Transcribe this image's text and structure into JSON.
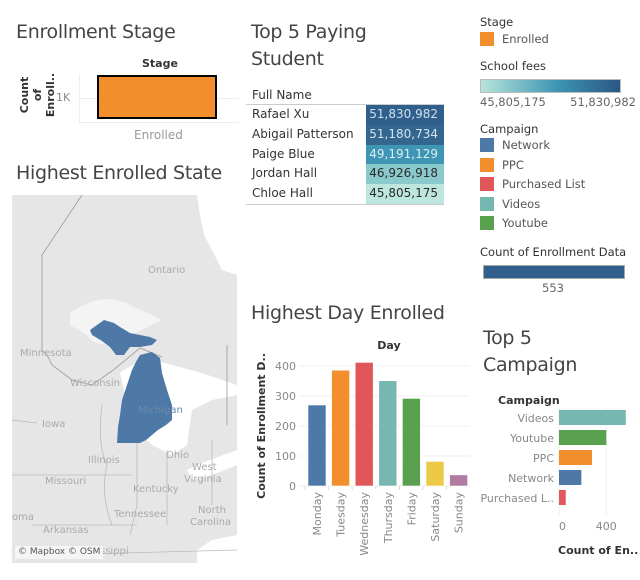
{
  "dashboard": {
    "stage_panel": {
      "title": "Enrollment Stage",
      "header": "Stage",
      "y_axis_label_line1": "Count of",
      "y_axis_label_line2": "Enroll..",
      "y_tick": "1K",
      "category": "Enrolled",
      "bar_color": "#F28E2B"
    },
    "paying_panel": {
      "title_line1": "Top 5 Paying",
      "title_line2": "Student",
      "column_header": "Full Name",
      "rows": [
        {
          "name": "Rafael Xu",
          "fee": "51,830,982",
          "bg": "#2F5F8A",
          "fg": "#cfe0ee"
        },
        {
          "name": "Abigail Patterson",
          "fee": "51,180,734",
          "bg": "#33678F",
          "fg": "#d5e3ef"
        },
        {
          "name": "Paige Blue",
          "fee": "49,191,129",
          "bg": "#3F96B4",
          "fg": "#d9eef3"
        },
        {
          "name": "Jordan Hall",
          "fee": "46,926,918",
          "bg": "#8ACACD",
          "fg": "#2b2b2b"
        },
        {
          "name": "Chloe Hall",
          "fee": "45,805,175",
          "bg": "#BDE6DE",
          "fg": "#2b2b2b"
        }
      ]
    },
    "legends": {
      "stage_title": "Stage",
      "stage_items": [
        {
          "label": "Enrolled",
          "color": "#F28E2B"
        }
      ],
      "fees_title": "School fees",
      "fees_min": "45,805,175",
      "fees_max": "51,830,982",
      "fees_gradient_start": "#B8E4DA",
      "fees_gradient_mid": "#3C95B3",
      "fees_gradient_end": "#2A5783",
      "campaign_title": "Campaign",
      "campaign_items": [
        {
          "label": "Network",
          "color": "#4E79A7"
        },
        {
          "label": "PPC",
          "color": "#F28E2B"
        },
        {
          "label": "Purchased List",
          "color": "#E15759"
        },
        {
          "label": "Videos",
          "color": "#76B7B2"
        },
        {
          "label": "Youtube",
          "color": "#59A14F"
        }
      ],
      "count_title": "Count of Enrollment Data",
      "count_value": "553",
      "count_color": "#2F5F8A"
    },
    "map_panel": {
      "title": "Highest Enrolled State",
      "highlight_state": "Michigan",
      "highlight_color": "#4E79A7",
      "labels": [
        "Ontario",
        "Minnesota",
        "Wisconsin",
        "Michigan",
        "Iowa",
        "Illinois",
        "Ohio",
        "West",
        "Virginia",
        "Missouri",
        "Kentucky",
        "Tennessee",
        "North",
        "Carolina",
        "Arkansas",
        "oma",
        "ssippi"
      ],
      "attribution": "© Mapbox © OSM"
    },
    "day_panel": {
      "title": "Highest Day Enrolled"
    },
    "campaign_panel": {
      "title_line1": "Top 5",
      "title_line2": "Campaign"
    }
  },
  "chart_data": [
    {
      "type": "bar",
      "title": "Enrollment Stage",
      "header": "Stage",
      "categories": [
        "Enrolled"
      ],
      "values": [
        1000
      ],
      "xlabel": "",
      "ylabel": "Count of Enroll..",
      "yticks": [
        "1K"
      ]
    },
    {
      "type": "bar",
      "title": "Highest Day Enrolled",
      "header": "Day",
      "categories": [
        "Monday",
        "Tuesday",
        "Wednesday",
        "Thursday",
        "Friday",
        "Saturday",
        "Sunday"
      ],
      "values": [
        270,
        386,
        412,
        351,
        292,
        82,
        37
      ],
      "colors": [
        "#4E79A7",
        "#F28E2B",
        "#E15759",
        "#76B7B2",
        "#59A14F",
        "#EDC948",
        "#B07AA1"
      ],
      "xlabel": "",
      "ylabel": "Count of Enrollment D..",
      "ylim": [
        0,
        420
      ],
      "yticks": [
        0,
        100,
        200,
        300,
        400
      ],
      "grid": true
    },
    {
      "type": "bar",
      "orientation": "horizontal",
      "title": "Top 5 Campaign",
      "header": "Campaign",
      "categories": [
        "Videos",
        "Youtube",
        "PPC",
        "Network",
        "Purchased L.."
      ],
      "values": [
        565,
        400,
        279,
        189,
        57
      ],
      "colors": [
        "#76B7B2",
        "#59A14F",
        "#F28E2B",
        "#4E79A7",
        "#E15759"
      ],
      "xlabel": "Count of En..",
      "xticks": [
        0,
        400
      ],
      "xlim": [
        0,
        600
      ],
      "grid": true
    }
  ]
}
